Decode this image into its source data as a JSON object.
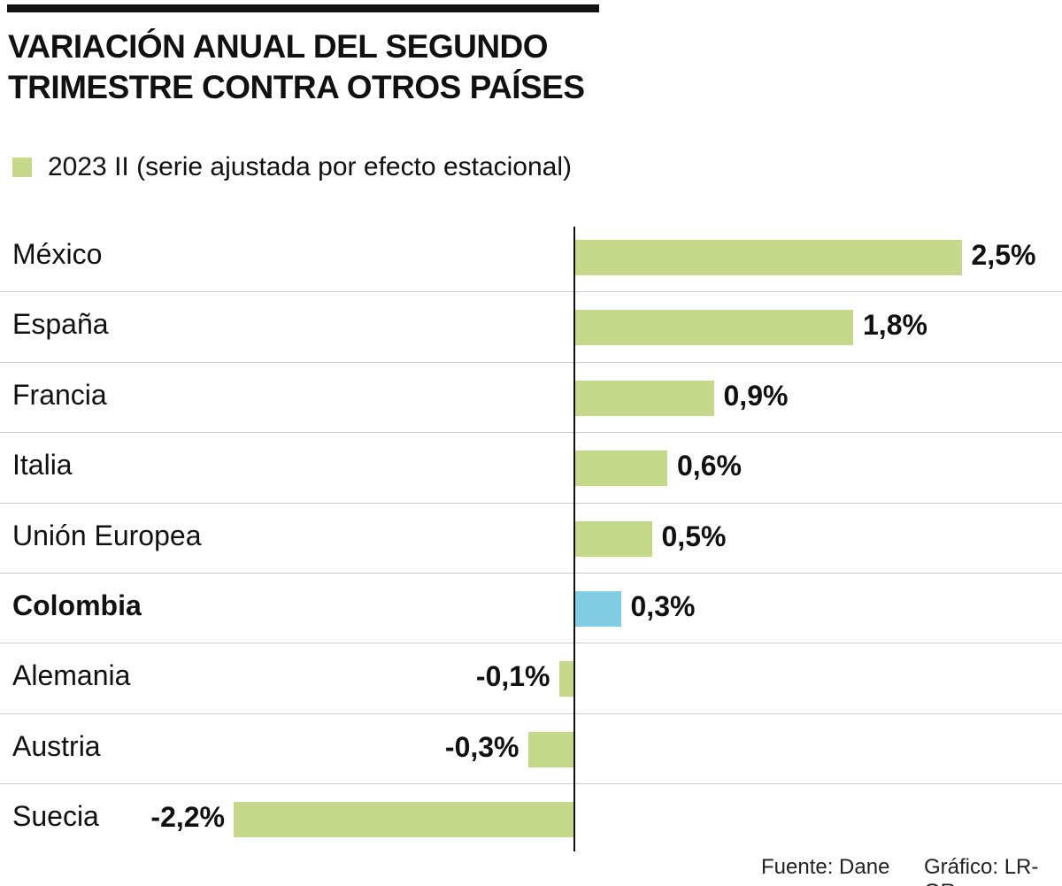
{
  "chart_data": {
    "type": "bar",
    "orientation": "horizontal",
    "title": "VARIACIÓN ANUAL DEL SEGUNDO TRIMESTRE CONTRA OTROS PAÍSES",
    "title_lines": [
      "VARIACIÓN ANUAL DEL SEGUNDO",
      "TRIMESTRE CONTRA OTROS PAÍSES"
    ],
    "legend": "2023 II (serie ajustada por efecto estacional)",
    "categories": [
      "México",
      "España",
      "Francia",
      "Italia",
      "Unión Europea",
      "Colombia",
      "Alemania",
      "Austria",
      "Suecia"
    ],
    "values": [
      2.5,
      1.8,
      0.9,
      0.6,
      0.5,
      0.3,
      -0.1,
      -0.3,
      -2.2
    ],
    "data_labels": [
      "2,5%",
      "1,8%",
      "0,9%",
      "0,6%",
      "0,5%",
      "0,3%",
      "-0,1%",
      "-0,3%",
      "-2,2%"
    ],
    "highlight": "Colombia",
    "colors": {
      "default": "#c6d98a",
      "highlight": "#82cde3"
    },
    "unit": "%",
    "grid": false
  },
  "footer": {
    "source": "Fuente: Dane",
    "credit": "Gráfico: LR-GR"
  }
}
